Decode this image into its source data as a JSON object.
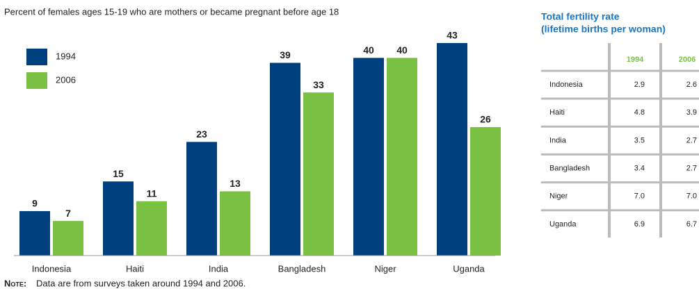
{
  "chart_data": {
    "type": "bar",
    "title": "Percent of females ages 15-19 who are mothers or became pregnant before age 18",
    "categories": [
      "Indonesia",
      "Haiti",
      "India",
      "Bangladesh",
      "Niger",
      "Uganda"
    ],
    "series": [
      {
        "name": "1994",
        "color": "#003f7d",
        "values": [
          9,
          15,
          23,
          39,
          40,
          43
        ]
      },
      {
        "name": "2006",
        "color": "#7ac143",
        "values": [
          7,
          11,
          13,
          33,
          40,
          26
        ]
      }
    ],
    "legend": "upper left",
    "note_label": "Note:",
    "note": "Data are from surveys taken around 1994 and 2006."
  },
  "table": {
    "title": [
      "Total fertility rate",
      "(lifetime births per woman)"
    ],
    "columns": [
      "1994",
      "2006"
    ],
    "rows": [
      [
        "Indonesia",
        "2.9",
        "2.6"
      ],
      [
        "Haiti",
        "4.8",
        "3.9"
      ],
      [
        "India",
        "3.5",
        "2.7"
      ],
      [
        "Bangladesh",
        "3.4",
        "2.7"
      ],
      [
        "Niger",
        "7.0",
        "7.0"
      ],
      [
        "Uganda",
        "6.9",
        "6.7"
      ]
    ]
  }
}
